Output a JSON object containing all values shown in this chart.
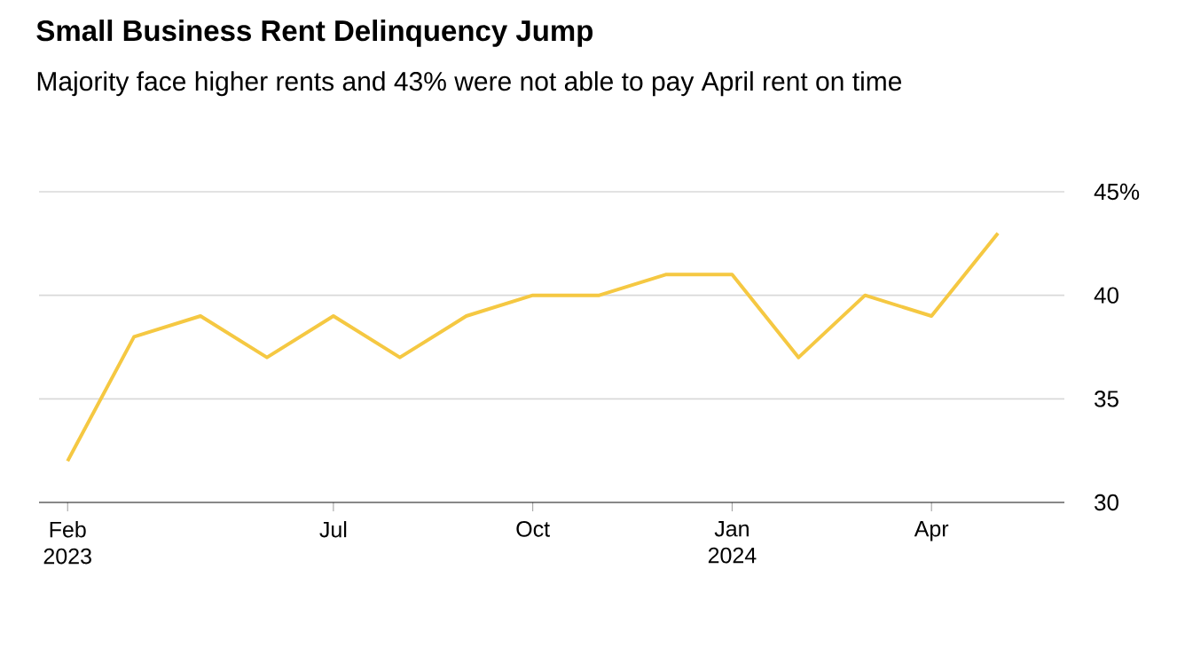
{
  "chart_data": {
    "type": "line",
    "title": "Small Business Rent Delinquency Jump",
    "subtitle": "Majority face higher rents and 43% were not able to pay April rent on time",
    "categories": [
      "Feb 2023",
      null,
      null,
      null,
      "Jul",
      null,
      null,
      "Oct",
      null,
      null,
      "Jan 2024",
      null,
      null,
      "Apr",
      null
    ],
    "values": [
      32,
      38,
      39,
      37,
      39,
      37,
      39,
      40,
      40,
      41,
      41,
      37,
      40,
      39,
      43
    ],
    "color": "#f5c842",
    "ylim": [
      30,
      45
    ],
    "yticks": [
      30,
      35,
      40,
      {
        "value": 45,
        "label": "45%"
      }
    ],
    "grid": "y"
  }
}
